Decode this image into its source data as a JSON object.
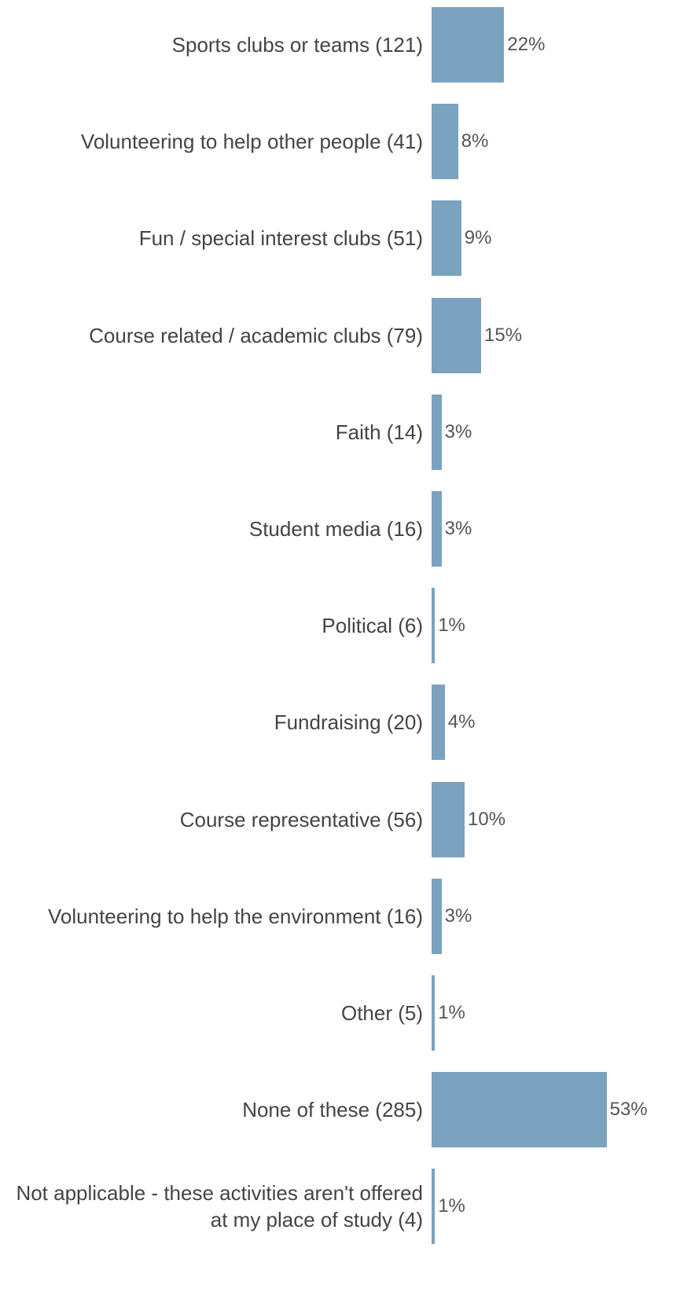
{
  "chart_data": {
    "type": "bar",
    "orientation": "horizontal",
    "categories": [
      "Sports clubs or teams (121)",
      "Volunteering to help other people (41)",
      "Fun / special interest clubs (51)",
      "Course related / academic clubs (79)",
      "Faith (14)",
      "Student media (16)",
      "Political (6)",
      "Fundraising (20)",
      "Course representative (56)",
      "Volunteering to help the environment (16)",
      "Other (5)",
      "None of these (285)",
      "Not applicable - these activities aren't offered at my place of study (4)"
    ],
    "values": [
      22,
      8,
      9,
      15,
      3,
      3,
      1,
      4,
      10,
      3,
      1,
      53,
      1
    ],
    "value_labels": [
      "22%",
      "8%",
      "9%",
      "15%",
      "3%",
      "3%",
      "1%",
      "4%",
      "10%",
      "3%",
      "1%",
      "53%",
      "1%"
    ],
    "color": "#7ba3bf"
  }
}
